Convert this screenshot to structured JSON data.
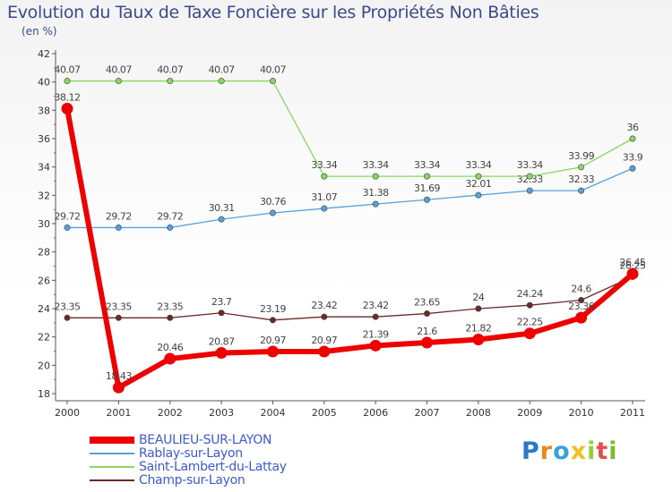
{
  "title": "Evolution du Taux de Taxe Foncière sur les Propriétés Non Bâties",
  "subtitle": "(en %)",
  "brand": "Proxiti",
  "chart_data": {
    "type": "line",
    "categories": [
      "2000",
      "2001",
      "2002",
      "2003",
      "2004",
      "2005",
      "2006",
      "2007",
      "2008",
      "2009",
      "2010",
      "2011"
    ],
    "ylim": [
      18,
      42
    ],
    "yticks": [
      "18",
      "20",
      "22",
      "24",
      "26",
      "28",
      "30",
      "32",
      "34",
      "36",
      "38",
      "40",
      "42"
    ],
    "grid": false,
    "series": [
      {
        "name": "Champ-sur-Layon",
        "color": "#6b2a2a",
        "values": [
          23.35,
          23.35,
          23.35,
          23.7,
          23.19,
          23.42,
          23.42,
          23.65,
          24,
          24.24,
          24.6,
          26.25
        ],
        "labels": [
          "23.35",
          "23.35",
          "23.35",
          "23.7",
          "23.19",
          "23.42",
          "23.42",
          "23.65",
          "24",
          "24.24",
          "24.6",
          "26.25"
        ]
      },
      {
        "name": "Rablay-sur-Layon",
        "color": "#5aa0d8",
        "values": [
          29.72,
          29.72,
          29.72,
          30.31,
          30.76,
          31.07,
          31.38,
          31.69,
          32.01,
          32.33,
          32.33,
          33.9
        ],
        "labels": [
          "29.72",
          "29.72",
          "29.72",
          "30.31",
          "30.76",
          "31.07",
          "31.38",
          "31.69",
          "32.01",
          "32.33",
          "32.33",
          "33.9"
        ]
      },
      {
        "name": "Saint-Lambert-du-Lattay",
        "color": "#88d860",
        "values": [
          40.07,
          40.07,
          40.07,
          40.07,
          40.07,
          33.34,
          33.34,
          33.34,
          33.34,
          33.34,
          33.99,
          36
        ],
        "labels": [
          "40.07",
          "40.07",
          "40.07",
          "40.07",
          "40.07",
          "33.34",
          "33.34",
          "33.34",
          "33.34",
          "33.34",
          "33.99",
          "36"
        ]
      },
      {
        "name": "BEAULIEU-SUR-LAYON",
        "color": "#ee0000",
        "values": [
          38.12,
          18.43,
          20.46,
          20.87,
          20.97,
          20.97,
          21.39,
          21.6,
          21.82,
          22.25,
          23.36,
          26.45
        ],
        "labels": [
          "38.12",
          "18.43",
          "20.46",
          "20.87",
          "20.97",
          "20.97",
          "21.39",
          "21.6",
          "21.82",
          "22.25",
          "23.36",
          "26.45"
        ]
      }
    ],
    "legend": [
      {
        "name": "BEAULIEU-SUR-LAYON",
        "color": "#ee0000",
        "thick": true
      },
      {
        "name": "Rablay-sur-Layon",
        "color": "#5aa0d8",
        "thick": false
      },
      {
        "name": "Saint-Lambert-du-Lattay",
        "color": "#88d860",
        "thick": false
      },
      {
        "name": "Champ-sur-Layon",
        "color": "#6b2a2a",
        "thick": false
      }
    ]
  }
}
